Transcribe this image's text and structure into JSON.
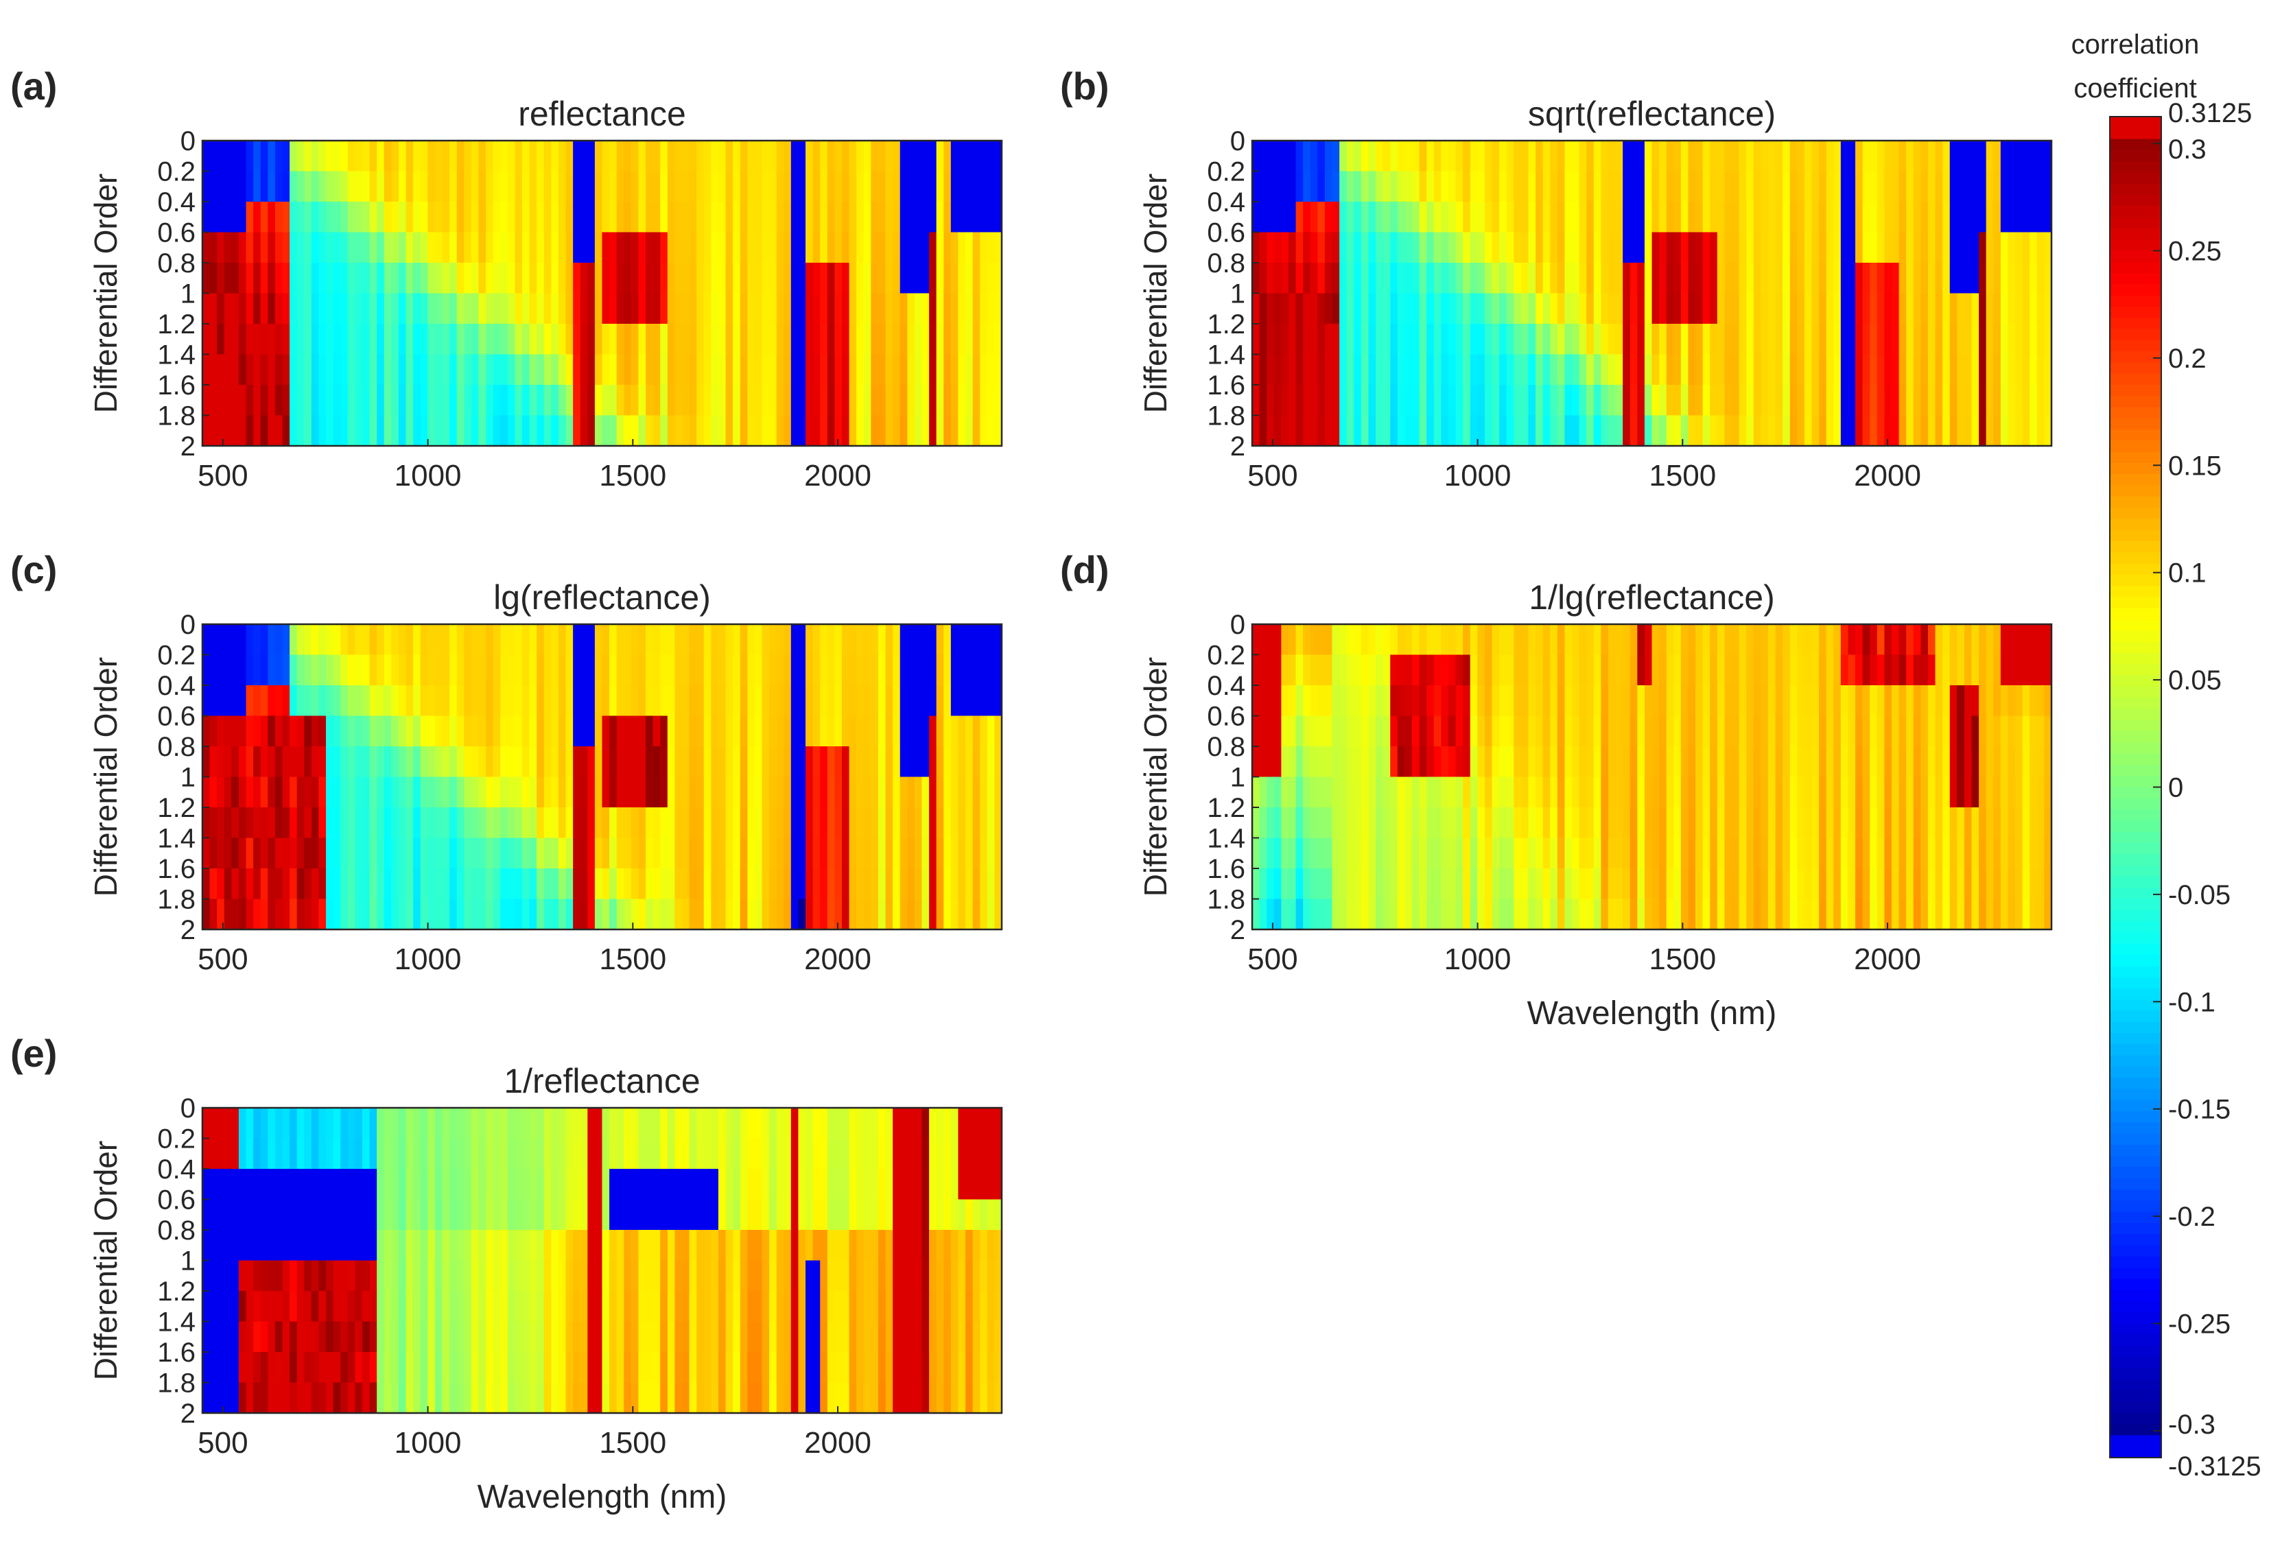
{
  "colors": {
    "axis": "#262626",
    "deep_blue": "#0000f0",
    "red": "#dc0000",
    "background": "#ffffff"
  },
  "colorbar": {
    "title_line1": "correlation",
    "title_line2": "coefficient",
    "min": -0.3125,
    "max": 0.3125,
    "tick_values": [
      0.3125,
      0.3,
      0.25,
      0.2,
      0.15,
      0.1,
      0.05,
      0,
      -0.05,
      -0.1,
      -0.15,
      -0.2,
      -0.25,
      -0.3,
      -0.3125
    ],
    "tick_labels": [
      "0.3125",
      "0.3",
      "0.25",
      "0.2",
      "0.15",
      "0.1",
      "0.05",
      "0",
      "-0.05",
      "-0.1",
      "-0.15",
      "-0.2",
      "-0.25",
      "-0.3",
      "-0.3125"
    ]
  },
  "chart_data": [
    {
      "type": "heatmap",
      "panel_label": "(a)",
      "title": "reflectance",
      "xlabel": "",
      "ylabel": "Differential Order",
      "xlim": [
        450,
        2400
      ],
      "ylim": [
        0,
        2
      ],
      "x_ticks": [
        500,
        1000,
        1500,
        2000
      ],
      "x_tick_labels": [
        "500",
        "1000",
        "1500",
        "2000"
      ],
      "y_ticks": [
        0,
        0.2,
        0.4,
        0.6,
        0.8,
        1,
        1.2,
        1.4,
        1.6,
        1.8,
        2
      ],
      "y_tick_labels": [
        "0",
        "0.2",
        "0.4",
        "0.6",
        "0.8",
        "1",
        "1.2",
        "1.4",
        "1.6",
        "1.8",
        "2"
      ],
      "variant": "base"
    },
    {
      "type": "heatmap",
      "panel_label": "(b)",
      "title": "sqrt(reflectance)",
      "xlabel": "",
      "ylabel": "Differential Order",
      "xlim": [
        450,
        2400
      ],
      "ylim": [
        0,
        2
      ],
      "x_ticks": [
        500,
        1000,
        1500,
        2000
      ],
      "x_tick_labels": [
        "500",
        "1000",
        "1500",
        "2000"
      ],
      "y_ticks": [
        0,
        0.2,
        0.4,
        0.6,
        0.8,
        1,
        1.2,
        1.4,
        1.6,
        1.8,
        2
      ],
      "y_tick_labels": [
        "0",
        "0.2",
        "0.4",
        "0.6",
        "0.8",
        "1",
        "1.2",
        "1.4",
        "1.6",
        "1.8",
        "2"
      ],
      "variant": "sqrt"
    },
    {
      "type": "heatmap",
      "panel_label": "(c)",
      "title": "lg(reflectance)",
      "xlabel": "",
      "ylabel": "Differential Order",
      "xlim": [
        450,
        2400
      ],
      "ylim": [
        0,
        2
      ],
      "x_ticks": [
        500,
        1000,
        1500,
        2000
      ],
      "x_tick_labels": [
        "500",
        "1000",
        "1500",
        "2000"
      ],
      "y_ticks": [
        0,
        0.2,
        0.4,
        0.6,
        0.8,
        1,
        1.2,
        1.4,
        1.6,
        1.8,
        2
      ],
      "y_tick_labels": [
        "0",
        "0.2",
        "0.4",
        "0.6",
        "0.8",
        "1",
        "1.2",
        "1.4",
        "1.6",
        "1.8",
        "2"
      ],
      "variant": "lg"
    },
    {
      "type": "heatmap",
      "panel_label": "(d)",
      "title": "1/lg(reflectance)",
      "xlabel": "Wavelength (nm)",
      "ylabel": "Differential Order",
      "xlim": [
        450,
        2400
      ],
      "ylim": [
        0,
        2
      ],
      "x_ticks": [
        500,
        1000,
        1500,
        2000
      ],
      "x_tick_labels": [
        "500",
        "1000",
        "1500",
        "2000"
      ],
      "y_ticks": [
        0,
        0.2,
        0.4,
        0.6,
        0.8,
        1,
        1.2,
        1.4,
        1.6,
        1.8,
        2
      ],
      "y_tick_labels": [
        "0",
        "0.2",
        "0.4",
        "0.6",
        "0.8",
        "1",
        "1.2",
        "1.4",
        "1.6",
        "1.8",
        "2"
      ],
      "variant": "inv_lg"
    },
    {
      "type": "heatmap",
      "panel_label": "(e)",
      "title": "1/reflectance",
      "xlabel": "Wavelength (nm)",
      "ylabel": "Differential Order",
      "xlim": [
        450,
        2400
      ],
      "ylim": [
        0,
        2
      ],
      "x_ticks": [
        500,
        1000,
        1500,
        2000
      ],
      "x_tick_labels": [
        "500",
        "1000",
        "1500",
        "2000"
      ],
      "y_ticks": [
        0,
        0.2,
        0.4,
        0.6,
        0.8,
        1,
        1.2,
        1.4,
        1.6,
        1.8,
        2
      ],
      "y_tick_labels": [
        "0",
        "0.2",
        "0.4",
        "0.6",
        "0.8",
        "1",
        "1.2",
        "1.4",
        "1.6",
        "1.8",
        "2"
      ],
      "variant": "inv"
    }
  ]
}
